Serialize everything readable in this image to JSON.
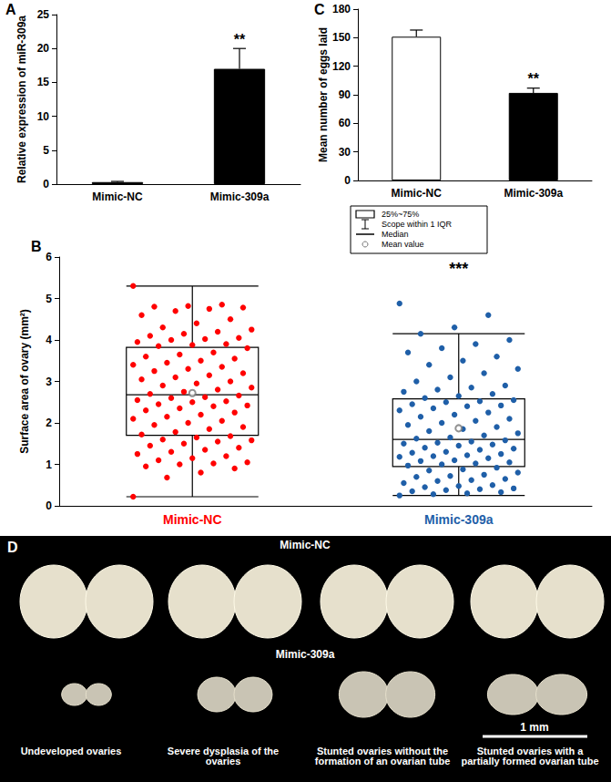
{
  "chart_data": [
    {
      "type": "bar",
      "title": "A",
      "categories": [
        "Mimic-NC",
        "Mimic-309a"
      ],
      "values": [
        0.3,
        17.0
      ],
      "errors": [
        0.1,
        3.0
      ],
      "colors": [
        "#000000",
        "#000000"
      ],
      "ylabel": "Relative expression of miR-309a",
      "ylim": [
        0,
        25
      ],
      "yticks": [
        0,
        5,
        10,
        15,
        20,
        25
      ],
      "annotations": [
        {
          "category": "Mimic-309a",
          "text": "**"
        }
      ]
    },
    {
      "type": "boxplot",
      "title": "B",
      "categories": [
        "Mimic-NC",
        "Mimic-309a"
      ],
      "colors": [
        "#ff0000",
        "#1f5fa8"
      ],
      "boxes": [
        {
          "min": 0.22,
          "q1": 1.7,
          "median": 2.68,
          "q3": 3.82,
          "max": 5.3,
          "mean": 2.72
        },
        {
          "min": 0.25,
          "q1": 0.95,
          "median": 1.6,
          "q3": 2.58,
          "max": 4.15,
          "mean": 1.87
        }
      ],
      "points": [
        [
          0.22,
          0.68,
          0.8,
          0.9,
          0.95,
          1.0,
          1.02,
          1.05,
          1.1,
          1.15,
          1.2,
          1.25,
          1.3,
          1.35,
          1.4,
          1.45,
          1.5,
          1.55,
          1.58,
          1.6,
          1.65,
          1.68,
          1.72,
          1.78,
          1.85,
          1.9,
          1.95,
          2.0,
          2.05,
          2.1,
          2.15,
          2.2,
          2.25,
          2.3,
          2.35,
          2.4,
          2.42,
          2.45,
          2.5,
          2.52,
          2.55,
          2.6,
          2.62,
          2.66,
          2.7,
          2.75,
          2.8,
          2.85,
          2.9,
          2.95,
          3.0,
          3.05,
          3.1,
          3.15,
          3.2,
          3.25,
          3.3,
          3.35,
          3.4,
          3.45,
          3.5,
          3.55,
          3.6,
          3.65,
          3.7,
          3.8,
          3.85,
          3.88,
          3.9,
          3.95,
          4.0,
          4.02,
          4.05,
          4.1,
          4.15,
          4.2,
          4.25,
          4.3,
          4.4,
          4.5,
          4.6,
          4.7,
          4.75,
          4.78,
          4.8,
          4.82,
          4.85,
          5.3
        ],
        [
          0.25,
          0.28,
          0.3,
          0.33,
          0.35,
          0.38,
          0.4,
          0.42,
          0.45,
          0.48,
          0.5,
          0.55,
          0.6,
          0.62,
          0.65,
          0.7,
          0.72,
          0.75,
          0.8,
          0.85,
          0.88,
          0.92,
          0.97,
          1.0,
          1.02,
          1.05,
          1.08,
          1.1,
          1.15,
          1.18,
          1.2,
          1.22,
          1.25,
          1.28,
          1.3,
          1.35,
          1.38,
          1.4,
          1.45,
          1.48,
          1.5,
          1.52,
          1.55,
          1.58,
          1.62,
          1.65,
          1.7,
          1.75,
          1.8,
          1.85,
          1.9,
          1.95,
          2.0,
          2.05,
          2.1,
          2.15,
          2.2,
          2.25,
          2.3,
          2.35,
          2.4,
          2.42,
          2.45,
          2.5,
          2.52,
          2.55,
          2.6,
          2.65,
          2.7,
          2.75,
          2.8,
          2.85,
          2.9,
          3.0,
          3.1,
          3.2,
          3.3,
          3.4,
          3.5,
          3.6,
          3.7,
          3.8,
          3.9,
          4.0,
          4.15,
          4.3,
          4.6,
          4.88
        ]
      ],
      "ylabel": "Surface area of ovary (mm²)",
      "ylim": [
        0,
        6
      ],
      "yticks": [
        0,
        1,
        2,
        3,
        4,
        5,
        6
      ],
      "annotations": [
        {
          "category": "Mimic-309a",
          "text": "***"
        }
      ],
      "legend_items": [
        "25%~75%",
        "Scope within 1 IQR",
        "Median",
        "Mean value"
      ]
    },
    {
      "type": "bar",
      "title": "C",
      "categories": [
        "Mimic-NC",
        "Mimic-309a"
      ],
      "values": [
        151,
        92
      ],
      "errors": [
        7,
        5
      ],
      "colors": [
        "#ffffff",
        "#000000"
      ],
      "ylabel": "Mean number of eggs laid",
      "ylim": [
        0,
        180
      ],
      "yticks": [
        0,
        30,
        60,
        90,
        120,
        150,
        180
      ],
      "annotations": [
        {
          "category": "Mimic-309a",
          "text": "**"
        }
      ]
    }
  ],
  "panel_d": {
    "title": "D",
    "rows": [
      "Mimic-NC",
      "Mimic-309a"
    ],
    "captions": [
      "Undeveloped ovaries",
      "Severe dysplasia of the\novaries",
      "Stunted ovaries without the\nformation of an ovarian tube",
      "Stunted ovaries with a\npartially formed ovarian tube"
    ],
    "scale_bar": "1 mm"
  }
}
